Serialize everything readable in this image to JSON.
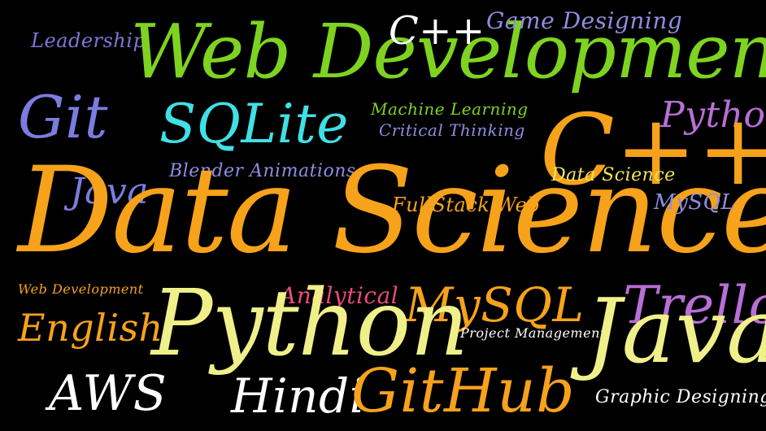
{
  "background": "#000000",
  "words": [
    {
      "id": "leadership",
      "text": "Leadership",
      "color": "#7a78d8"
    },
    {
      "id": "web-development-large",
      "text": "Web Development",
      "color": "#7ed321"
    },
    {
      "id": "cpp-white",
      "text": "C++",
      "color": "#ffffff"
    },
    {
      "id": "game-designing",
      "text": "Game Designing",
      "color": "#8f8de0"
    },
    {
      "id": "git",
      "text": "Git",
      "color": "#7c7ce0"
    },
    {
      "id": "sqlite",
      "text": "SQLite",
      "color": "#3fe0e6"
    },
    {
      "id": "machine-learning",
      "text": "Machine Learning",
      "color": "#7ed321"
    },
    {
      "id": "critical-thinking",
      "text": "Critical Thinking",
      "color": "#8f8de0"
    },
    {
      "id": "python-purple",
      "text": "Python",
      "color": "#b86fd6"
    },
    {
      "id": "blender-animations",
      "text": "Blender Animations",
      "color": "#8f8de0"
    },
    {
      "id": "cpp-orange",
      "text": "C++",
      "color": "#f7a21b"
    },
    {
      "id": "data-science-small",
      "text": "Data Science",
      "color": "#f2e35a"
    },
    {
      "id": "java-left",
      "text": "Java",
      "color": "#7c7ce0"
    },
    {
      "id": "data-science-large",
      "text": "Data Science",
      "color": "#f7a21b"
    },
    {
      "id": "fullstack-web",
      "text": "FullStack Web",
      "color": "#f7a21b"
    },
    {
      "id": "mysql-small",
      "text": "MySQL",
      "color": "#8f8de0"
    },
    {
      "id": "web-development-small",
      "text": "Web Development",
      "color": "#f7a21b"
    },
    {
      "id": "analytical",
      "text": "Analytical",
      "color": "#e84c7a"
    },
    {
      "id": "mysql-orange",
      "text": "MySQL",
      "color": "#f7a21b"
    },
    {
      "id": "trello",
      "text": "Trello",
      "color": "#b86fd6"
    },
    {
      "id": "english",
      "text": "English",
      "color": "#f7a21b"
    },
    {
      "id": "python-yellow",
      "text": "Python",
      "color": "#f0f08a"
    },
    {
      "id": "project-management",
      "text": "Project Management",
      "color": "#ffffff"
    },
    {
      "id": "java-large",
      "text": "Java",
      "color": "#f0f08a"
    },
    {
      "id": "aws",
      "text": "AWS",
      "color": "#ffffff"
    },
    {
      "id": "hindi",
      "text": "Hindi",
      "color": "#ffffff"
    },
    {
      "id": "github",
      "text": "GitHub",
      "color": "#f7a21b"
    },
    {
      "id": "graphic-designing",
      "text": "Graphic Designing",
      "color": "#ffffff"
    }
  ]
}
